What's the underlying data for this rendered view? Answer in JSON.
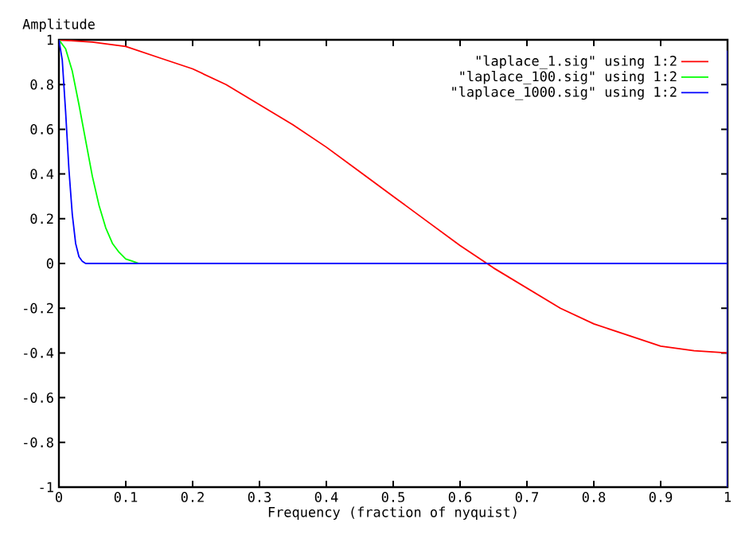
{
  "chart_data": {
    "type": "line",
    "xlabel": "Frequency (fraction of nyquist)",
    "ylabel": "Amplitude",
    "xlim": [
      0,
      1
    ],
    "ylim": [
      -1,
      1
    ],
    "xticks": [
      0,
      0.1,
      0.2,
      0.3,
      0.4,
      0.5,
      0.6,
      0.7,
      0.8,
      0.9,
      1
    ],
    "yticks": [
      -1,
      -0.8,
      -0.6,
      -0.4,
      -0.2,
      0,
      0.2,
      0.4,
      0.6,
      0.8,
      1
    ],
    "grid": false,
    "legend": "top right",
    "marker": "none",
    "line_style": "solid",
    "series": [
      {
        "name": "\"laplace_1.sig\" using 1:2",
        "color": "#ff0000",
        "x": [
          0,
          0.05,
          0.1,
          0.15,
          0.2,
          0.25,
          0.3,
          0.35,
          0.4,
          0.45,
          0.5,
          0.55,
          0.6,
          0.65,
          0.7,
          0.75,
          0.8,
          0.85,
          0.9,
          0.95,
          1
        ],
        "values": [
          1,
          0.99,
          0.97,
          0.92,
          0.87,
          0.8,
          0.71,
          0.62,
          0.52,
          0.41,
          0.3,
          0.19,
          0.08,
          -0.02,
          -0.11,
          -0.2,
          -0.27,
          -0.32,
          -0.37,
          -0.39,
          -0.4
        ]
      },
      {
        "name": "\"laplace_100.sig\" using 1:2",
        "color": "#00ff00",
        "x": [
          0,
          0.01,
          0.02,
          0.03,
          0.04,
          0.05,
          0.06,
          0.07,
          0.08,
          0.09,
          0.1,
          0.11,
          0.12
        ],
        "values": [
          1,
          0.96,
          0.86,
          0.71,
          0.55,
          0.39,
          0.26,
          0.16,
          0.09,
          0.05,
          0.02,
          0.01,
          0
        ]
      },
      {
        "name": "\"laplace_1000.sig\" using 1:2",
        "color": "#0000ff",
        "x": [
          0,
          0.005,
          0.01,
          0.015,
          0.02,
          0.025,
          0.03,
          0.035,
          0.04,
          1,
          1,
          1
        ],
        "values": [
          1,
          0.91,
          0.68,
          0.42,
          0.22,
          0.09,
          0.03,
          0.01,
          0,
          0,
          0.95,
          -1
        ]
      }
    ]
  }
}
